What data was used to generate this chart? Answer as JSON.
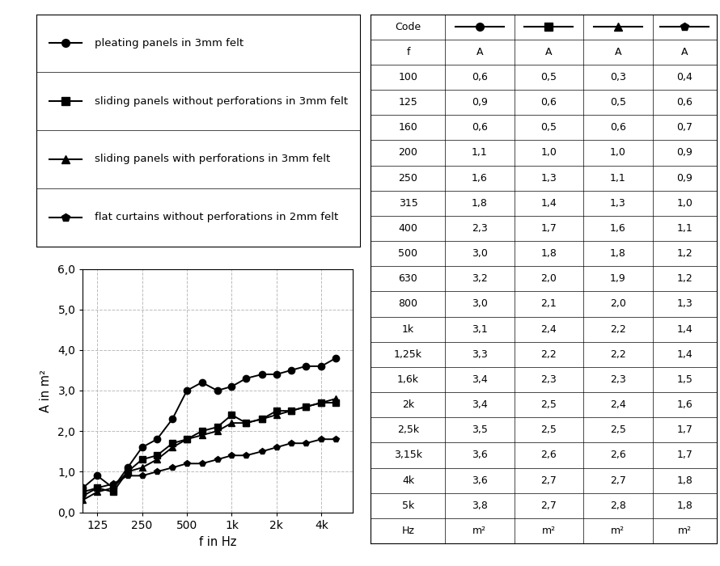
{
  "frequencies": [
    100,
    125,
    160,
    200,
    250,
    315,
    400,
    500,
    630,
    800,
    1000,
    1250,
    1600,
    2000,
    2500,
    3150,
    4000,
    5000
  ],
  "freq_labels": [
    "125",
    "250",
    "500",
    "1k",
    "2k",
    "4k"
  ],
  "freq_ticks": [
    125,
    250,
    500,
    1000,
    2000,
    4000
  ],
  "series1": [
    0.6,
    0.9,
    0.6,
    1.1,
    1.6,
    1.8,
    2.3,
    3.0,
    3.2,
    3.0,
    3.1,
    3.3,
    3.4,
    3.4,
    3.5,
    3.6,
    3.6,
    3.8
  ],
  "series2": [
    0.5,
    0.6,
    0.5,
    1.0,
    1.3,
    1.4,
    1.7,
    1.8,
    2.0,
    2.1,
    2.4,
    2.2,
    2.3,
    2.5,
    2.5,
    2.6,
    2.7,
    2.7
  ],
  "series3": [
    0.3,
    0.5,
    0.6,
    1.0,
    1.1,
    1.3,
    1.6,
    1.8,
    1.9,
    2.0,
    2.2,
    2.2,
    2.3,
    2.4,
    2.5,
    2.6,
    2.7,
    2.8
  ],
  "series4": [
    0.4,
    0.6,
    0.7,
    0.9,
    0.9,
    1.0,
    1.1,
    1.2,
    1.2,
    1.3,
    1.4,
    1.4,
    1.5,
    1.6,
    1.7,
    1.7,
    1.8,
    1.8
  ],
  "table_freq_labels": [
    "100",
    "125",
    "160",
    "200",
    "250",
    "315",
    "400",
    "500",
    "630",
    "800",
    "1k",
    "1,25k",
    "1,6k",
    "2k",
    "2,5k",
    "3,15k",
    "4k",
    "5k",
    "Hz"
  ],
  "table_s1": [
    "0,6",
    "0,9",
    "0,6",
    "1,1",
    "1,6",
    "1,8",
    "2,3",
    "3,0",
    "3,2",
    "3,0",
    "3,1",
    "3,3",
    "3,4",
    "3,4",
    "3,5",
    "3,6",
    "3,6",
    "3,8",
    "m²"
  ],
  "table_s2": [
    "0,5",
    "0,6",
    "0,5",
    "1,0",
    "1,3",
    "1,4",
    "1,7",
    "1,8",
    "2,0",
    "2,1",
    "2,4",
    "2,2",
    "2,3",
    "2,5",
    "2,5",
    "2,6",
    "2,7",
    "2,7",
    "m²"
  ],
  "table_s3": [
    "0,3",
    "0,5",
    "0,6",
    "1,0",
    "1,1",
    "1,3",
    "1,6",
    "1,8",
    "1,9",
    "2,0",
    "2,2",
    "2,2",
    "2,3",
    "2,4",
    "2,5",
    "2,6",
    "2,7",
    "2,8",
    "m²"
  ],
  "table_s4": [
    "0,4",
    "0,6",
    "0,7",
    "0,9",
    "0,9",
    "1,0",
    "1,1",
    "1,2",
    "1,2",
    "1,3",
    "1,4",
    "1,4",
    "1,5",
    "1,6",
    "1,7",
    "1,7",
    "1,8",
    "1,8",
    "m²"
  ],
  "legend_labels": [
    "pleating panels in 3mm felt",
    "sliding panels without perforations in 3mm felt",
    "sliding panels with perforations in 3mm felt",
    "flat curtains without perforations in 2mm felt"
  ],
  "ylabel": "A in m²",
  "xlabel": "f in Hz",
  "ylim": [
    0,
    6.0
  ],
  "yticks": [
    0.0,
    1.0,
    2.0,
    3.0,
    4.0,
    5.0,
    6.0
  ],
  "ytick_labels": [
    "0,0",
    "1,0",
    "2,0",
    "3,0",
    "4,0",
    "5,0",
    "6,0"
  ],
  "color": "#000000",
  "bg_color": "#ffffff",
  "grid_color": "#bbbbbb"
}
